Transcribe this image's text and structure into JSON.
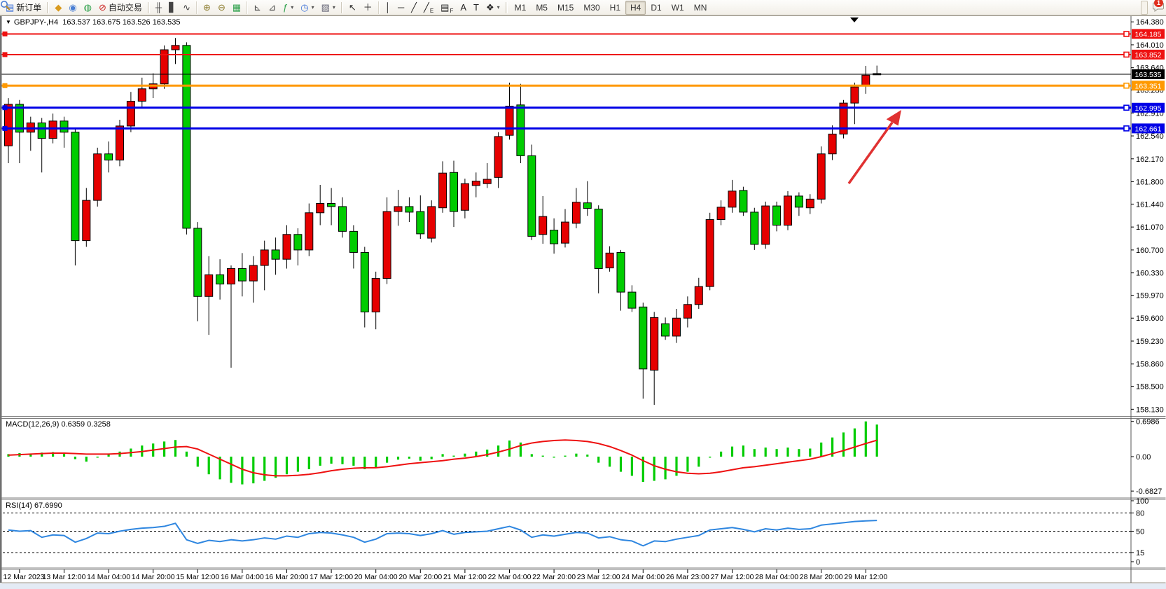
{
  "toolbar": {
    "items": [
      {
        "name": "new-order-button",
        "type": "button",
        "label": "新订单",
        "icon": "▤",
        "icon_color": "#3a6fd8",
        "interact": true
      },
      {
        "name": "toolbar-grip",
        "type": "grip"
      },
      {
        "name": "symbols-icon",
        "type": "icon",
        "icon": "◆",
        "icon_color": "#d99b1f",
        "interact": true
      },
      {
        "name": "profile-icon",
        "type": "icon",
        "icon": "◉",
        "icon_color": "#4a7fd4",
        "interact": true
      },
      {
        "name": "signals-icon",
        "type": "icon",
        "icon": "◍",
        "icon_color": "#2fa14c",
        "interact": true
      },
      {
        "name": "autotrading-button",
        "type": "button",
        "label": "自动交易",
        "icon": "⊘",
        "icon_color": "#cc2222",
        "interact": true
      },
      {
        "name": "toolbar-grip",
        "type": "grip"
      },
      {
        "name": "bar-chart-type-icon",
        "type": "icon",
        "icon": "╫",
        "icon_color": "#444",
        "interact": true
      },
      {
        "name": "candlestick-chart-type-icon",
        "type": "icon",
        "icon": "▋",
        "icon_color": "#444",
        "interact": true
      },
      {
        "name": "line-chart-type-icon",
        "type": "icon",
        "icon": "∿",
        "icon_color": "#444",
        "interact": true
      },
      {
        "name": "toolbar-sep",
        "type": "sep"
      },
      {
        "name": "zoom-in-icon",
        "type": "icon",
        "icon": "⊕",
        "icon_color": "#8a7a2a",
        "interact": true
      },
      {
        "name": "zoom-out-icon",
        "type": "icon",
        "icon": "⊖",
        "icon_color": "#8a7a2a",
        "interact": true
      },
      {
        "name": "tile-windows-icon",
        "type": "icon",
        "icon": "▦",
        "icon_color": "#2fa14c",
        "interact": true
      },
      {
        "name": "toolbar-sep",
        "type": "sep"
      },
      {
        "name": "indicator-window-icon",
        "type": "icon",
        "icon": "⊾",
        "icon_color": "#444",
        "interact": true
      },
      {
        "name": "indicator-window2-icon",
        "type": "icon",
        "icon": "⊿",
        "icon_color": "#444",
        "interact": true
      },
      {
        "name": "add-indicator-icon",
        "type": "icon",
        "icon": "ƒ",
        "icon_color": "#2fa14c",
        "caret": true,
        "interact": true
      },
      {
        "name": "periods-icon",
        "type": "icon",
        "icon": "◷",
        "icon_color": "#3a6fd8",
        "caret": true,
        "interact": true
      },
      {
        "name": "templates-icon",
        "type": "icon",
        "icon": "▨",
        "icon_color": "#667",
        "caret": true,
        "interact": true
      },
      {
        "name": "toolbar-grip",
        "type": "grip"
      },
      {
        "name": "cursor-icon",
        "type": "icon",
        "icon": "↖",
        "icon_color": "#222",
        "interact": true
      },
      {
        "name": "crosshair-icon",
        "type": "icon",
        "icon": "＋",
        "icon_color": "#222",
        "interact": true
      },
      {
        "name": "toolbar-sep",
        "type": "sep"
      },
      {
        "name": "vertical-line-icon",
        "type": "icon",
        "icon": "│",
        "icon_color": "#222",
        "interact": true
      },
      {
        "name": "horizontal-line-icon",
        "type": "icon",
        "icon": "─",
        "icon_color": "#222",
        "interact": true
      },
      {
        "name": "trendline-icon",
        "type": "icon",
        "icon": "╱",
        "icon_color": "#222",
        "interact": true
      },
      {
        "name": "channel-icon",
        "type": "icon",
        "icon": "╱",
        "sub": "E",
        "icon_color": "#222",
        "interact": true
      },
      {
        "name": "fibonacci-icon",
        "type": "icon",
        "icon": "▤",
        "sub": "F",
        "icon_color": "#222",
        "interact": true
      },
      {
        "name": "text-icon",
        "type": "icon",
        "icon": "A",
        "icon_color": "#222",
        "interact": true
      },
      {
        "name": "text-label-icon",
        "type": "icon",
        "icon": "T",
        "icon_color": "#222",
        "interact": true
      },
      {
        "name": "arrows-icon",
        "type": "icon",
        "icon": "❖",
        "icon_color": "#222",
        "caret": true,
        "interact": true
      },
      {
        "name": "toolbar-grip",
        "type": "grip"
      }
    ],
    "timeframes": [
      "M1",
      "M5",
      "M15",
      "M30",
      "H1",
      "H4",
      "D1",
      "W1",
      "MN"
    ],
    "active_timeframe": "H4",
    "notifications_count": "1"
  },
  "chart_data": {
    "type": "candlestick+macd+rsi",
    "symbol": "GBPJPY-",
    "period": "H4",
    "title": "GBPJPY-,H4",
    "ohlc_line": "163.537 163.675 163.526 163.535",
    "current_price": "163.535",
    "up_color": "#e60000",
    "down_color": "#00cc00",
    "y_ticks": [
      "164.380",
      "164.010",
      "163.640",
      "163.280",
      "162.910",
      "162.540",
      "162.170",
      "161.800",
      "161.440",
      "161.070",
      "160.700",
      "160.330",
      "159.970",
      "159.600",
      "159.230",
      "158.860",
      "158.500",
      "158.130"
    ],
    "levels": [
      {
        "price": 164.185,
        "label": "164.185",
        "color": "#ee1111",
        "width": 2
      },
      {
        "price": 163.852,
        "label": "163.852",
        "color": "#ee1111",
        "width": 2
      },
      {
        "price": 163.351,
        "label": "163.351",
        "color": "#ff9900",
        "width": 3
      },
      {
        "price": 162.995,
        "label": "162.995",
        "color": "#0000e6",
        "width": 3
      },
      {
        "price": 162.661,
        "label": "162.661",
        "color": "#0000e6",
        "width": 3
      }
    ],
    "x_labels": [
      "12 Mar 2023",
      "13 Mar 12:00",
      "14 Mar 04:00",
      "14 Mar 20:00",
      "15 Mar 12:00",
      "16 Mar 04:00",
      "16 Mar 20:00",
      "17 Mar 12:00",
      "20 Mar 04:00",
      "20 Mar 20:00",
      "21 Mar 12:00",
      "22 Mar 04:00",
      "22 Mar 20:00",
      "23 Mar 12:00",
      "24 Mar 04:00",
      "26 Mar 23:00",
      "27 Mar 12:00",
      "28 Mar 04:00",
      "28 Mar 20:00",
      "29 Mar 12:00"
    ],
    "candles": [
      [
        162.38,
        163.15,
        162.1,
        163.05
      ],
      [
        163.05,
        163.12,
        162.1,
        162.6
      ],
      [
        162.6,
        162.85,
        162.3,
        162.75
      ],
      [
        162.75,
        162.83,
        161.95,
        162.5
      ],
      [
        162.5,
        162.9,
        162.42,
        162.78
      ],
      [
        162.78,
        162.85,
        162.35,
        162.6
      ],
      [
        162.6,
        162.65,
        160.45,
        160.85
      ],
      [
        160.85,
        161.7,
        160.75,
        161.5
      ],
      [
        161.5,
        162.35,
        161.4,
        162.25
      ],
      [
        162.25,
        162.45,
        161.95,
        162.15
      ],
      [
        162.15,
        162.8,
        162.05,
        162.7
      ],
      [
        162.7,
        163.25,
        162.6,
        163.1
      ],
      [
        163.1,
        163.48,
        163.0,
        163.3
      ],
      [
        163.3,
        163.55,
        163.15,
        163.38
      ],
      [
        163.38,
        164.0,
        163.3,
        163.93
      ],
      [
        163.93,
        164.12,
        163.7,
        164.0
      ],
      [
        164.0,
        164.05,
        160.95,
        161.05
      ],
      [
        161.05,
        161.15,
        159.55,
        159.95
      ],
      [
        159.95,
        160.6,
        159.33,
        160.3
      ],
      [
        160.3,
        160.55,
        159.9,
        160.15
      ],
      [
        160.15,
        160.45,
        158.8,
        160.4
      ],
      [
        160.4,
        160.65,
        159.95,
        160.2
      ],
      [
        160.2,
        160.6,
        159.85,
        160.45
      ],
      [
        160.45,
        160.85,
        160.05,
        160.7
      ],
      [
        160.7,
        160.9,
        160.3,
        160.55
      ],
      [
        160.55,
        161.1,
        160.4,
        160.95
      ],
      [
        160.95,
        161.05,
        160.45,
        160.7
      ],
      [
        160.7,
        161.45,
        160.6,
        161.3
      ],
      [
        161.3,
        161.75,
        161.1,
        161.45
      ],
      [
        161.45,
        161.7,
        161.1,
        161.4
      ],
      [
        161.4,
        161.55,
        160.9,
        161.0
      ],
      [
        161.0,
        161.1,
        160.4,
        160.66
      ],
      [
        160.66,
        160.75,
        159.45,
        159.7
      ],
      [
        159.7,
        160.35,
        159.42,
        160.24
      ],
      [
        160.24,
        161.55,
        160.15,
        161.32
      ],
      [
        161.32,
        161.67,
        161.09,
        161.4
      ],
      [
        161.4,
        161.55,
        161.15,
        161.31
      ],
      [
        161.32,
        161.58,
        160.88,
        160.96
      ],
      [
        160.89,
        161.5,
        160.82,
        161.4
      ],
      [
        161.38,
        162.13,
        161.3,
        161.94
      ],
      [
        161.95,
        162.14,
        161.07,
        161.32
      ],
      [
        161.34,
        161.85,
        161.21,
        161.77
      ],
      [
        161.74,
        161.95,
        161.55,
        161.81
      ],
      [
        161.77,
        162.1,
        161.7,
        161.84
      ],
      [
        161.87,
        162.6,
        161.7,
        162.53
      ],
      [
        162.55,
        163.4,
        162.48,
        163.02
      ],
      [
        163.04,
        163.38,
        162.1,
        162.22
      ],
      [
        162.22,
        162.4,
        160.86,
        160.92
      ],
      [
        160.95,
        161.57,
        160.8,
        161.24
      ],
      [
        161.02,
        161.21,
        160.64,
        160.8
      ],
      [
        160.81,
        161.36,
        160.74,
        161.15
      ],
      [
        161.13,
        161.7,
        161.05,
        161.47
      ],
      [
        161.46,
        161.81,
        161.25,
        161.37
      ],
      [
        161.36,
        161.42,
        160.0,
        160.4
      ],
      [
        160.41,
        160.76,
        160.35,
        160.65
      ],
      [
        160.66,
        160.7,
        159.72,
        160.02
      ],
      [
        160.02,
        160.13,
        159.7,
        159.76
      ],
      [
        159.78,
        159.85,
        158.3,
        158.78
      ],
      [
        158.76,
        159.7,
        158.2,
        159.61
      ],
      [
        159.51,
        159.61,
        159.25,
        159.31
      ],
      [
        159.31,
        159.75,
        159.2,
        159.6
      ],
      [
        159.6,
        159.95,
        159.45,
        159.82
      ],
      [
        159.82,
        160.25,
        159.75,
        160.11
      ],
      [
        160.11,
        161.3,
        160.05,
        161.19
      ],
      [
        161.19,
        161.5,
        161.1,
        161.39
      ],
      [
        161.39,
        161.83,
        161.3,
        161.65
      ],
      [
        161.66,
        161.72,
        161.25,
        161.31
      ],
      [
        161.31,
        161.38,
        160.7,
        160.79
      ],
      [
        160.79,
        161.48,
        160.72,
        161.41
      ],
      [
        161.41,
        161.48,
        161.0,
        161.1
      ],
      [
        161.1,
        161.65,
        161.02,
        161.57
      ],
      [
        161.57,
        161.63,
        161.25,
        161.39
      ],
      [
        161.38,
        161.6,
        161.28,
        161.52
      ],
      [
        161.52,
        162.37,
        161.45,
        162.25
      ],
      [
        162.25,
        162.71,
        162.15,
        162.57
      ],
      [
        162.57,
        163.12,
        162.5,
        163.07
      ],
      [
        163.07,
        163.4,
        162.73,
        163.33
      ],
      [
        163.35,
        163.67,
        163.22,
        163.52
      ],
      [
        163.537,
        163.675,
        163.526,
        163.535
      ]
    ],
    "macd": {
      "label": "MACD(12,26,9) 0.6359 0.3258",
      "value": "0.6359",
      "signal_value": "0.3258",
      "scale_max": "0.6986",
      "zero_label": "0.00",
      "scale_min": "-0.6827",
      "bar_color": "#00cc00",
      "line_color": "#ee1111",
      "histogram": [
        0.05,
        0.07,
        0.06,
        0.08,
        0.09,
        0.08,
        -0.05,
        -0.1,
        -0.02,
        0.04,
        0.1,
        0.16,
        0.22,
        0.26,
        0.3,
        0.33,
        0.1,
        -0.2,
        -0.35,
        -0.45,
        -0.52,
        -0.55,
        -0.53,
        -0.48,
        -0.42,
        -0.35,
        -0.3,
        -0.25,
        -0.18,
        -0.14,
        -0.15,
        -0.18,
        -0.25,
        -0.22,
        -0.12,
        -0.06,
        -0.04,
        -0.08,
        -0.05,
        0.05,
        0.02,
        0.06,
        0.1,
        0.14,
        0.22,
        0.32,
        0.28,
        0.05,
        0.02,
        -0.02,
        0.02,
        0.06,
        0.04,
        -0.12,
        -0.2,
        -0.3,
        -0.38,
        -0.5,
        -0.48,
        -0.45,
        -0.38,
        -0.3,
        -0.2,
        -0.02,
        0.1,
        0.2,
        0.22,
        0.15,
        0.18,
        0.15,
        0.18,
        0.15,
        0.16,
        0.28,
        0.38,
        0.48,
        0.56,
        0.6986,
        0.6359
      ],
      "signal": [
        0.03,
        0.04,
        0.05,
        0.06,
        0.07,
        0.07,
        0.06,
        0.05,
        0.05,
        0.05,
        0.06,
        0.08,
        0.1,
        0.13,
        0.16,
        0.19,
        0.2,
        0.15,
        0.05,
        -0.05,
        -0.15,
        -0.25,
        -0.32,
        -0.36,
        -0.38,
        -0.38,
        -0.37,
        -0.35,
        -0.32,
        -0.28,
        -0.25,
        -0.23,
        -0.22,
        -0.22,
        -0.2,
        -0.17,
        -0.14,
        -0.12,
        -0.1,
        -0.08,
        -0.05,
        -0.03,
        0.0,
        0.04,
        0.09,
        0.15,
        0.22,
        0.27,
        0.3,
        0.32,
        0.33,
        0.32,
        0.3,
        0.26,
        0.2,
        0.12,
        0.03,
        -0.08,
        -0.18,
        -0.25,
        -0.3,
        -0.33,
        -0.34,
        -0.33,
        -0.3,
        -0.26,
        -0.22,
        -0.2,
        -0.17,
        -0.14,
        -0.11,
        -0.08,
        -0.05,
        0.0,
        0.06,
        0.12,
        0.19,
        0.26,
        0.3258
      ]
    },
    "rsi": {
      "label": "RSI(14) 67.6990",
      "value": "67.6990",
      "scale_labels": [
        "100",
        "80",
        "50",
        "15",
        "0"
      ],
      "dashed_levels": [
        80,
        50,
        15
      ],
      "line_color": "#2e86e0",
      "series": [
        52,
        50,
        51,
        40,
        44,
        43,
        32,
        38,
        47,
        46,
        50,
        53,
        55,
        56,
        58,
        63,
        36,
        30,
        35,
        33,
        36,
        34,
        36,
        39,
        37,
        42,
        40,
        46,
        48,
        47,
        44,
        40,
        32,
        37,
        46,
        47,
        46,
        43,
        46,
        51,
        45,
        48,
        49,
        50,
        54,
        58,
        52,
        40,
        44,
        42,
        45,
        48,
        47,
        39,
        41,
        36,
        34,
        26,
        34,
        33,
        37,
        40,
        43,
        52,
        54,
        56,
        53,
        49,
        54,
        52,
        55,
        53,
        54,
        60,
        62,
        64,
        66,
        67,
        67.7
      ]
    },
    "arrow": {
      "color": "#e03131"
    }
  }
}
